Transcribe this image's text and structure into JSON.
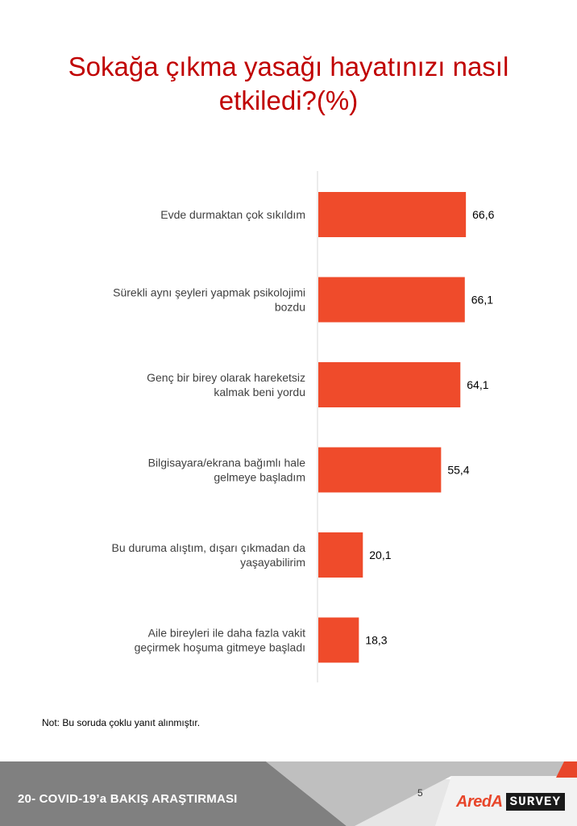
{
  "title_lines": [
    "Sokağa çıkma yasağı hayatınızı nasıl",
    "etkiledi?(%)"
  ],
  "note": "Not: Bu soruda  çoklu yanıt alınmıştır.",
  "footer": {
    "label": "20- COVID-19’a BAKIŞ ARAŞTIRMASI",
    "page_number": "5",
    "logo_brand": "AredA",
    "logo_survey": "SURVEY"
  },
  "colors": {
    "bar": "#ef4b2b",
    "title": "#c00000",
    "footer_dark": "#7f7f7f",
    "footer_light": "#c8c8c8"
  },
  "chart_data": {
    "type": "bar",
    "orientation": "horizontal",
    "categories": [
      [
        "Evde durmaktan çok sıkıldım"
      ],
      [
        "Sürekli aynı şeyleri yapmak psikolojimi",
        "bozdu"
      ],
      [
        "Genç bir birey olarak hareketsiz",
        "kalmak beni yordu"
      ],
      [
        "Bilgisayara/ekrana bağımlı hale",
        "gelmeye başladım"
      ],
      [
        "Bu duruma alıştım, dışarı çıkmadan da",
        "yaşayabilirim"
      ],
      [
        "Aile bireyleri ile daha fazla vakit",
        "geçirmek hoşuma gitmeye başladı"
      ]
    ],
    "values": [
      66.6,
      66.1,
      64.1,
      55.4,
      20.1,
      18.3
    ],
    "value_labels": [
      "66,6",
      "66,1",
      "64,1",
      "55,4",
      "20,1",
      "18,3"
    ],
    "xlim": [
      0,
      100
    ],
    "grid": false,
    "legend": "none"
  }
}
